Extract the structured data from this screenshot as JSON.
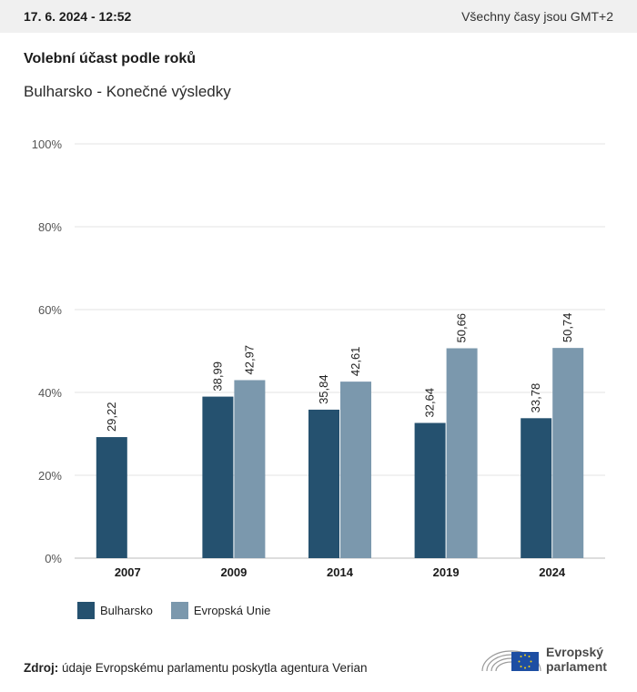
{
  "header": {
    "datetime": "17. 6. 2024 - 12:52",
    "timezone_note": "Všechny časy jsou GMT+2"
  },
  "title": "Volební účast podle roků",
  "subtitle": "Bulharsko - Konečné výsledky",
  "colors": {
    "bulgaria": "#25516f",
    "eu": "#7b98ad",
    "grid": "#e3e3e3",
    "axis": "#bbbbbb"
  },
  "chart_data": {
    "type": "bar",
    "categories": [
      "2007",
      "2009",
      "2014",
      "2019",
      "2024"
    ],
    "series": [
      {
        "name": "Bulharsko",
        "values": [
          29.22,
          38.99,
          35.84,
          32.64,
          33.78
        ],
        "labels": [
          "29,22",
          "38,99",
          "35,84",
          "32,64",
          "33,78"
        ]
      },
      {
        "name": "Evropská Unie",
        "values": [
          null,
          42.97,
          42.61,
          50.66,
          50.74
        ],
        "labels": [
          "",
          "42,97",
          "42,61",
          "50,66",
          "50,74"
        ]
      }
    ],
    "ylim": [
      0,
      100
    ],
    "yticks": [
      0,
      20,
      40,
      60,
      80,
      100
    ],
    "ytick_labels": [
      "0%",
      "20%",
      "40%",
      "60%",
      "80%",
      "100%"
    ],
    "grid": true,
    "legend_position": "bottom-left"
  },
  "legend": {
    "bulgaria_label": "Bulharsko",
    "eu_label": "Evropská Unie"
  },
  "footer": {
    "source_label": "Zdroj:",
    "source_text": "údaje Evropskému parlamentu poskytla agentura Verian",
    "logo_line1": "Evropský",
    "logo_line2": "parlament"
  }
}
